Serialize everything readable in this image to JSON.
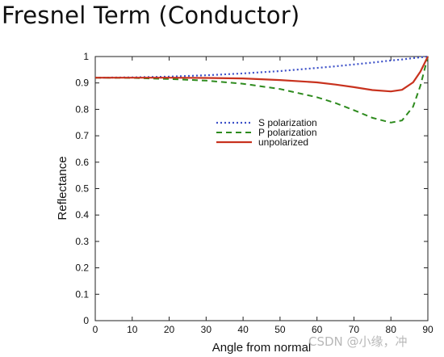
{
  "title": "Fresnel Term (Conductor)",
  "watermark": "CSDN @小缘，冲",
  "chart_data": {
    "type": "line",
    "xlabel": "Angle from normal",
    "ylabel": "Reflectance",
    "xlim": [
      0,
      90
    ],
    "ylim": [
      0,
      1
    ],
    "xticks": [
      "0",
      "10",
      "20",
      "30",
      "40",
      "50",
      "60",
      "70",
      "80",
      "90"
    ],
    "yticks": [
      "0",
      "0.1",
      "0.2",
      "0.3",
      "0.4",
      "0.5",
      "0.6",
      "0.7",
      "0.8",
      "0.9",
      "1"
    ],
    "grid": false,
    "legend_position": "center",
    "x": [
      0,
      10,
      20,
      30,
      40,
      50,
      60,
      65,
      70,
      75,
      80,
      83,
      86,
      88,
      90
    ],
    "series": [
      {
        "name": "S polarization",
        "color": "#3c50c8",
        "style": "dotted",
        "values": [
          0.92,
          0.921,
          0.924,
          0.929,
          0.936,
          0.945,
          0.957,
          0.963,
          0.97,
          0.977,
          0.985,
          0.989,
          0.994,
          0.997,
          1.0
        ]
      },
      {
        "name": "P polarization",
        "color": "#2e8b1e",
        "style": "dashed",
        "values": [
          0.92,
          0.919,
          0.915,
          0.909,
          0.897,
          0.877,
          0.846,
          0.824,
          0.797,
          0.768,
          0.75,
          0.758,
          0.81,
          0.89,
          1.0
        ]
      },
      {
        "name": "unpolarized",
        "color": "#c8321e",
        "style": "solid",
        "values": [
          0.92,
          0.92,
          0.92,
          0.919,
          0.917,
          0.911,
          0.902,
          0.894,
          0.884,
          0.873,
          0.868,
          0.874,
          0.902,
          0.943,
          1.0
        ]
      }
    ]
  }
}
